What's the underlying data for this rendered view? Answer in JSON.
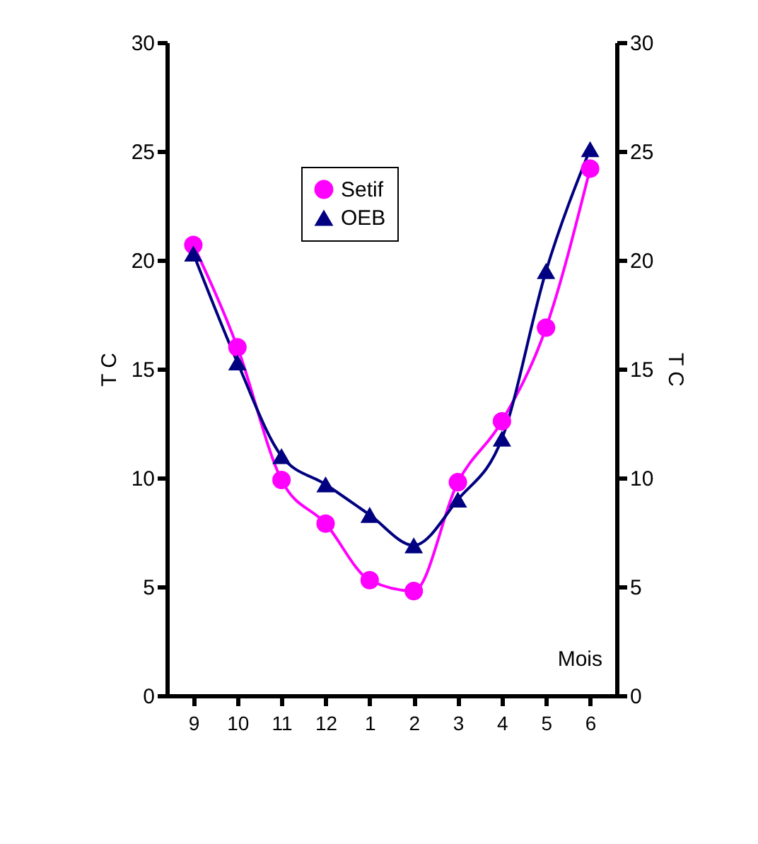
{
  "chart_data": {
    "type": "line",
    "ylabel": "T C",
    "y2label": "T C",
    "categories": [
      "9",
      "10",
      "11",
      "12",
      "1",
      "2",
      "3",
      "4",
      "5",
      "6"
    ],
    "series": [
      {
        "name": "Setif",
        "color": "#ff00ff",
        "marker": "circle",
        "values": [
          20.7,
          16.0,
          9.9,
          7.9,
          5.3,
          4.8,
          9.8,
          12.6,
          16.9,
          24.2
        ]
      },
      {
        "name": "OEB",
        "color": "#000080",
        "marker": "triangle",
        "values": [
          20.3,
          15.3,
          11.0,
          9.7,
          8.3,
          6.9,
          9.0,
          11.8,
          19.5,
          25.1
        ]
      }
    ],
    "ylim": [
      0,
      30
    ],
    "yticks": [
      0,
      5,
      10,
      15,
      20,
      25,
      30
    ],
    "y2lim": [
      0,
      30
    ],
    "y2ticks": [
      0,
      5,
      10,
      15,
      20,
      25,
      30
    ],
    "annotations": [
      "Mois"
    ],
    "legend": "top",
    "grid": false,
    "line_style": "solid"
  }
}
